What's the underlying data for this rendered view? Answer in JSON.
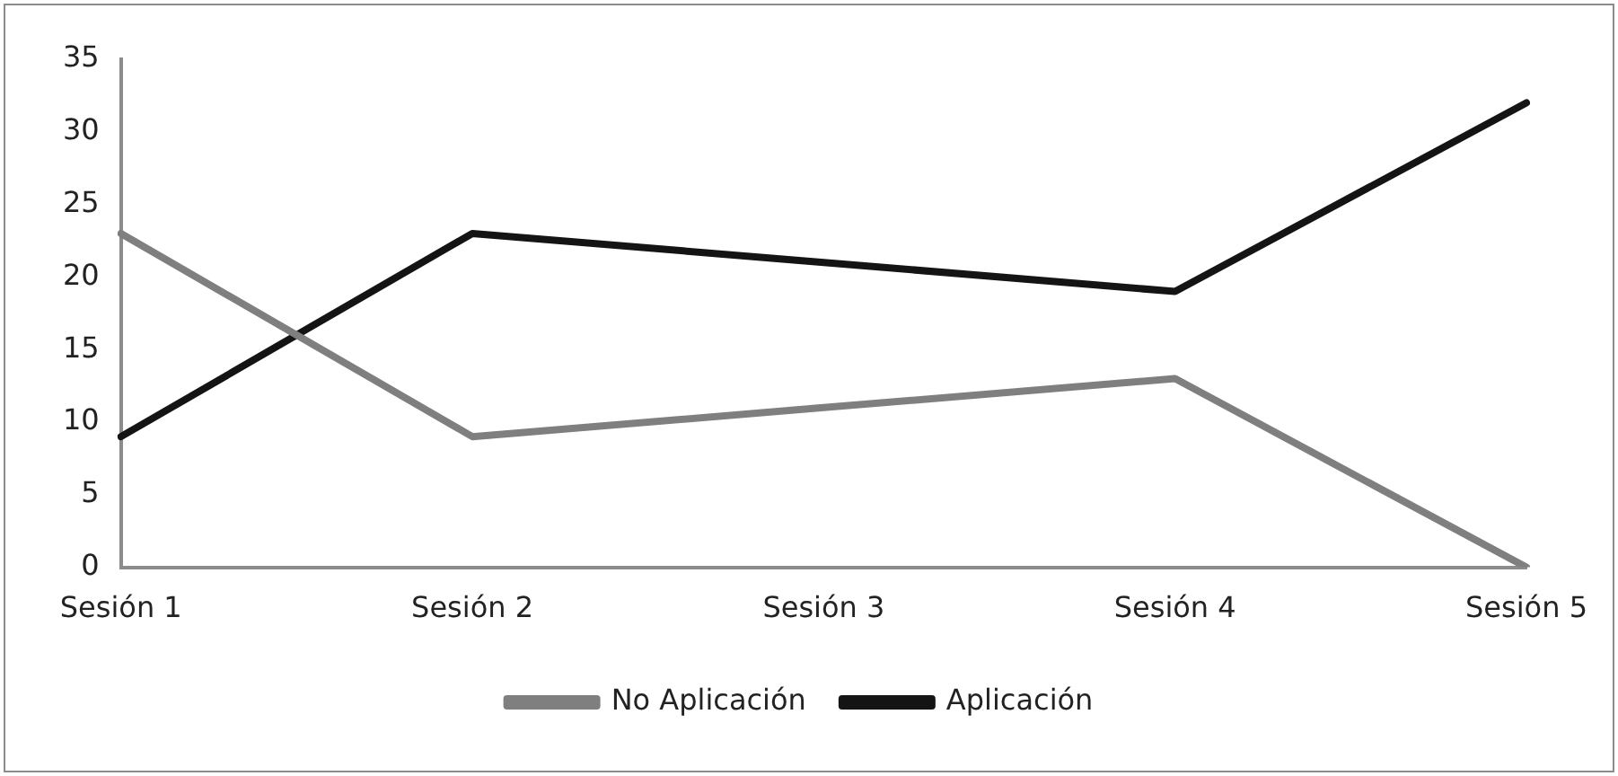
{
  "chart_data": {
    "type": "line",
    "categories": [
      "Sesión 1",
      "Sesión 2",
      "Sesión 3",
      "Sesión 4",
      "Sesión 5"
    ],
    "series": [
      {
        "name": "No Aplicación",
        "color": "#7f7f7f",
        "values": [
          23,
          9,
          11,
          13,
          0
        ]
      },
      {
        "name": "Aplicación",
        "color": "#141414",
        "values": [
          9,
          23,
          21,
          19,
          32
        ]
      }
    ],
    "ylim": [
      0,
      35
    ],
    "yticks": [
      0,
      5,
      10,
      15,
      20,
      25,
      30,
      35
    ],
    "grid": false,
    "legend": "bottom",
    "marker": "none",
    "line_style": "solid"
  }
}
